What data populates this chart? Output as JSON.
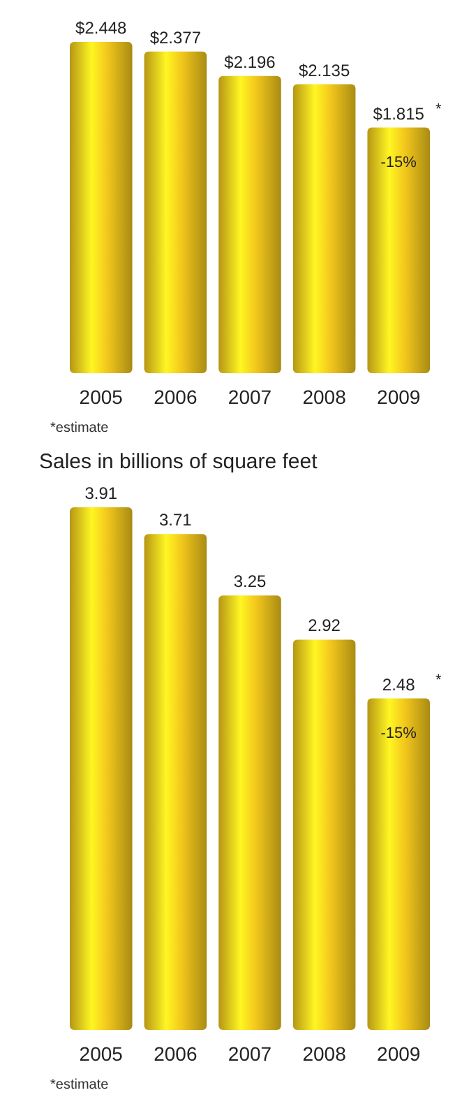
{
  "chart_data": [
    {
      "type": "bar",
      "categories": [
        "2005",
        "2006",
        "2007",
        "2008",
        "2009"
      ],
      "values": [
        2.448,
        2.377,
        2.196,
        2.135,
        1.815
      ],
      "value_labels": [
        "$2.448",
        "$2.377",
        "$2.196",
        "$2.135",
        "$1.815"
      ],
      "color": "#f2c71c",
      "annotations": [
        {
          "text": "*",
          "x": "2009",
          "y": 1.815
        },
        "-15%",
        "*estimate"
      ]
    },
    {
      "type": "bar",
      "title": "Sales in billions of square feet",
      "categories": [
        "2005",
        "2006",
        "2007",
        "2008",
        "2009"
      ],
      "values": [
        3.91,
        3.71,
        3.25,
        2.92,
        2.48
      ],
      "data_labels": true,
      "color": "#f2c71c",
      "annotations": [
        {
          "text": "*",
          "x": "2009",
          "y": 2.48
        },
        "-15%",
        "*estimate"
      ]
    }
  ]
}
